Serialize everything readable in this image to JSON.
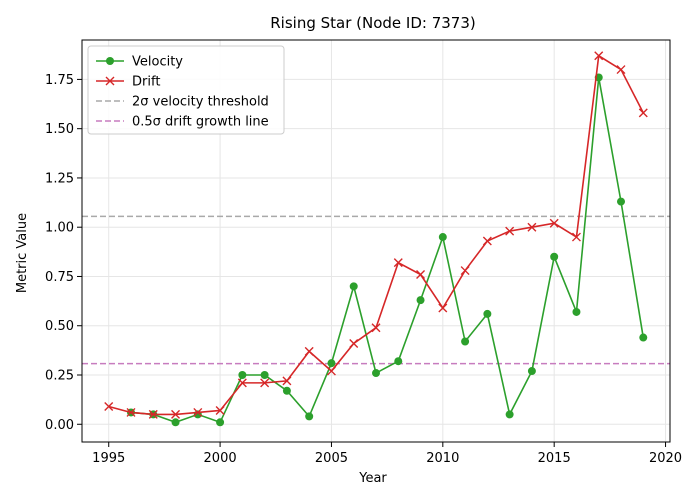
{
  "chart_data": {
    "type": "line",
    "title": "Rising Star (Node ID: 7373)",
    "xlabel": "Year",
    "ylabel": "Metric Value",
    "xlim": [
      1993.8,
      2020.2
    ],
    "ylim": [
      -0.09,
      1.95
    ],
    "xticks": [
      1995,
      2000,
      2005,
      2010,
      2015,
      2020
    ],
    "yticks": [
      0.0,
      0.25,
      0.5,
      0.75,
      1.0,
      1.25,
      1.5,
      1.75
    ],
    "ytick_labels": [
      "0.00",
      "0.25",
      "0.50",
      "0.75",
      "1.00",
      "1.25",
      "1.50",
      "1.75"
    ],
    "grid": true,
    "legend_position": "upper-left",
    "series": [
      {
        "name": "Velocity",
        "color": "#2ca02c",
        "marker": "circle",
        "x": [
          1996,
          1997,
          1998,
          1999,
          2000,
          2001,
          2002,
          2003,
          2004,
          2005,
          2006,
          2007,
          2008,
          2009,
          2010,
          2011,
          2012,
          2013,
          2014,
          2015,
          2016,
          2017,
          2018,
          2019
        ],
        "y": [
          0.06,
          0.05,
          0.01,
          0.05,
          0.01,
          0.25,
          0.25,
          0.17,
          0.04,
          0.31,
          0.7,
          0.26,
          0.32,
          0.63,
          0.95,
          0.42,
          0.56,
          0.05,
          0.27,
          0.85,
          0.57,
          1.76,
          1.13,
          0.44
        ]
      },
      {
        "name": "Drift",
        "color": "#d62728",
        "marker": "x",
        "x": [
          1995,
          1996,
          1997,
          1998,
          1999,
          2000,
          2001,
          2002,
          2003,
          2004,
          2005,
          2006,
          2007,
          2008,
          2009,
          2010,
          2011,
          2012,
          2013,
          2014,
          2015,
          2016,
          2017,
          2018,
          2019
        ],
        "y": [
          0.09,
          0.06,
          0.05,
          0.05,
          0.06,
          0.07,
          0.21,
          0.21,
          0.22,
          0.37,
          0.27,
          0.41,
          0.49,
          0.82,
          0.76,
          0.59,
          0.78,
          0.93,
          0.98,
          1.0,
          1.02,
          0.95,
          1.87,
          1.8,
          1.58
        ]
      }
    ],
    "reference_lines": [
      {
        "name": "2σ velocity threshold",
        "y": 1.055,
        "color": "#a9a9a9",
        "style": "dashed"
      },
      {
        "name": "0.5σ drift growth line",
        "y": 0.308,
        "color": "#c77cbf",
        "style": "dashed"
      }
    ]
  }
}
